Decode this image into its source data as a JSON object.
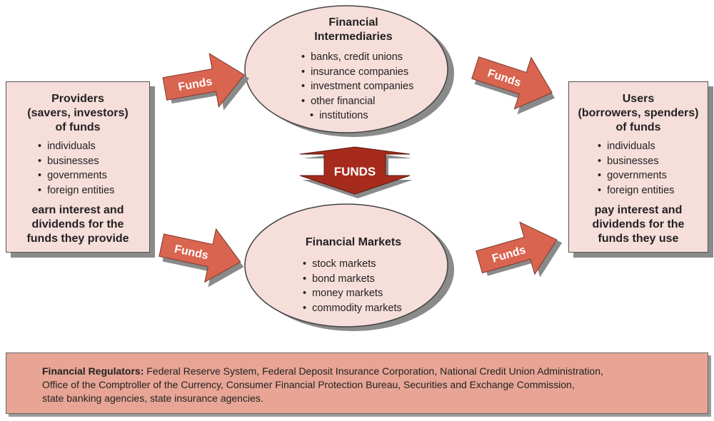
{
  "providers": {
    "title": [
      "Providers",
      "(savers, investors)",
      "of funds"
    ],
    "items": [
      "individuals",
      "businesses",
      "governments",
      "foreign entities"
    ],
    "note": [
      "earn interest and",
      "dividends for the",
      "funds they provide"
    ]
  },
  "users": {
    "title": [
      "Users",
      "(borrowers, spenders)",
      "of funds"
    ],
    "items": [
      "individuals",
      "businesses",
      "governments",
      "foreign entities"
    ],
    "note": [
      "pay interest and",
      "dividends for the",
      "funds they use"
    ]
  },
  "intermediaries": {
    "title": [
      "Financial",
      "Intermediaries"
    ],
    "items": [
      "banks, credit unions",
      "insurance companies",
      "investment companies",
      "other financial",
      "institutions"
    ]
  },
  "markets": {
    "title": "Financial Markets",
    "items": [
      "stock markets",
      "bond markets",
      "money markets",
      "commodity markets"
    ]
  },
  "arrows": {
    "funds_label": "Funds",
    "center_label": "FUNDS"
  },
  "regulators": {
    "label": "Financial Regulators:",
    "text_line1": " Federal Reserve System, Federal Deposit Insurance Corporation, National Credit Union Administration,",
    "text_line2": "Office of the Comptroller of the Currency, Consumer Financial Protection Bureau, Securities and Exchange Commission,",
    "text_line3": "state banking agencies, state insurance agencies."
  },
  "colors": {
    "box_fill": "#f6dedb",
    "arrow_fill": "#d9644f",
    "center_arrow_fill": "#a62b1c",
    "regulator_fill": "#e8a595",
    "shadow": "#8a8a8a"
  }
}
